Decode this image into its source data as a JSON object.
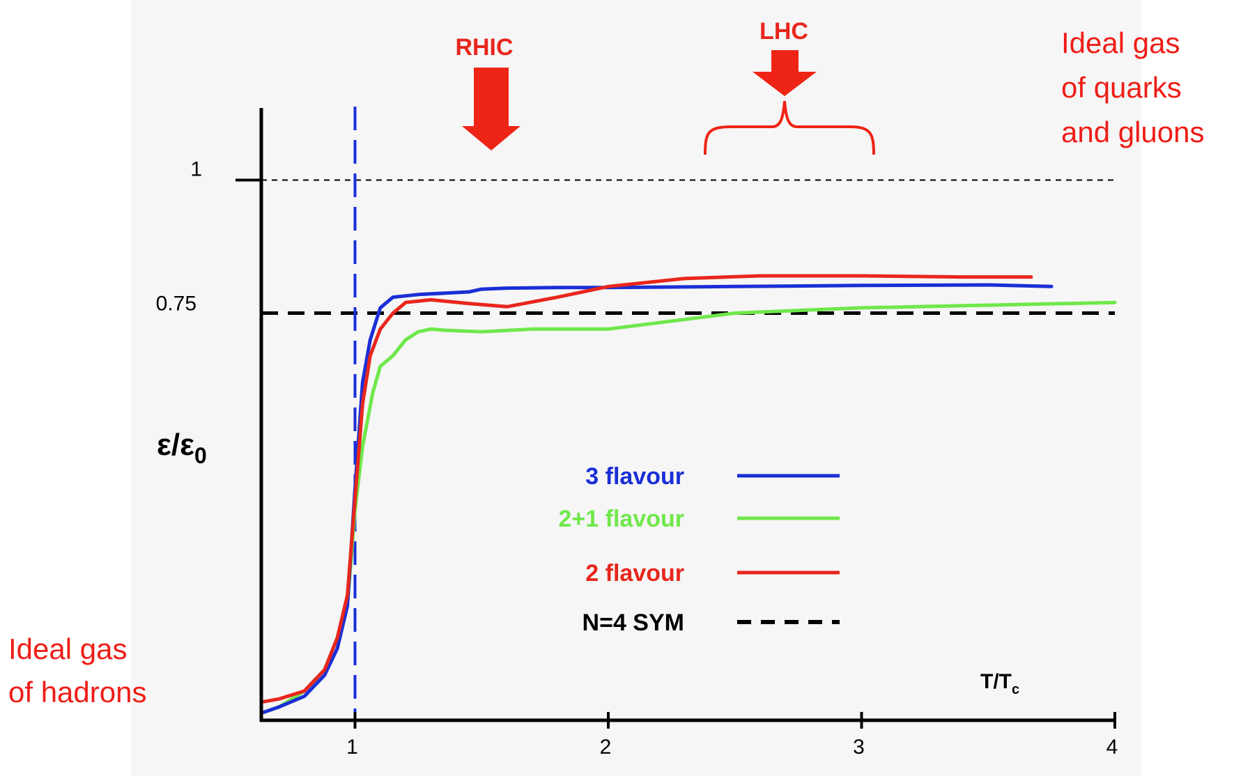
{
  "chart_data": {
    "type": "line",
    "xlabel": "T/T",
    "xlabel_sub": "c",
    "ylabel": "ε/ε",
    "ylabel_sub": "0",
    "xlim": [
      0.63,
      4.0
    ],
    "ylim": [
      -0.015,
      1.125
    ],
    "x_ticks": [
      {
        "value": 1,
        "label": "1"
      },
      {
        "value": 2,
        "label": "2"
      },
      {
        "value": 3,
        "label": "3"
      },
      {
        "value": 4,
        "label": "4"
      }
    ],
    "y_ticks": [
      {
        "value": 1,
        "label": "1"
      },
      {
        "value": 0.75,
        "label": "0.75"
      }
    ],
    "reference_lines": [
      {
        "name": "N=4 SYM",
        "value": 0.75,
        "style": "dashed",
        "color": "#000000"
      },
      {
        "value": 1.0,
        "style": "dotted",
        "color": "#000000"
      }
    ],
    "vertical_line": {
      "value": 1.0,
      "style": "dashed",
      "color": "#1a2fd6"
    },
    "series": [
      {
        "name": "3 flavour",
        "color": "#1a2fd6",
        "x": [
          0.64,
          0.7,
          0.8,
          0.88,
          0.93,
          0.97,
          1.0,
          1.03,
          1.06,
          1.1,
          1.15,
          1.25,
          1.45,
          1.5,
          1.6,
          1.8,
          2.0,
          2.5,
          3.0,
          3.5,
          3.75
        ],
        "y": [
          0.0,
          0.01,
          0.03,
          0.07,
          0.12,
          0.2,
          0.42,
          0.62,
          0.7,
          0.76,
          0.78,
          0.785,
          0.79,
          0.795,
          0.797,
          0.798,
          0.798,
          0.8,
          0.802,
          0.803,
          0.8
        ]
      },
      {
        "name": "2+1 flavour",
        "color": "#6fe84a",
        "x": [
          0.64,
          0.7,
          0.8,
          0.88,
          0.93,
          0.97,
          1.0,
          1.03,
          1.07,
          1.1,
          1.15,
          1.2,
          1.25,
          1.3,
          1.35,
          1.5,
          1.7,
          2.0,
          2.5,
          3.0,
          3.5,
          4.0
        ],
        "y": [
          0.0,
          0.01,
          0.04,
          0.08,
          0.14,
          0.2,
          0.38,
          0.5,
          0.6,
          0.65,
          0.67,
          0.7,
          0.715,
          0.72,
          0.718,
          0.715,
          0.72,
          0.72,
          0.75,
          0.76,
          0.765,
          0.77
        ]
      },
      {
        "name": "2 flavour",
        "color": "#e8261c",
        "x": [
          0.64,
          0.7,
          0.8,
          0.88,
          0.93,
          0.97,
          1.0,
          1.03,
          1.06,
          1.1,
          1.15,
          1.2,
          1.3,
          1.45,
          1.6,
          1.8,
          2.0,
          2.3,
          2.6,
          3.0,
          3.4,
          3.67
        ],
        "y": [
          0.02,
          0.025,
          0.04,
          0.08,
          0.14,
          0.22,
          0.4,
          0.58,
          0.67,
          0.72,
          0.75,
          0.77,
          0.775,
          0.768,
          0.762,
          0.78,
          0.8,
          0.815,
          0.82,
          0.82,
          0.818,
          0.818
        ]
      }
    ],
    "legend_position": "center"
  },
  "annotations": {
    "rhic_label": "RHIC",
    "lhc_label": "LHC",
    "qgp_text": [
      "Ideal gas",
      "of quarks",
      "and gluons"
    ],
    "hadron_text": [
      "Ideal gas",
      "of hadrons"
    ]
  },
  "legend": [
    {
      "label": "3 flavour",
      "color": "#1a2fd6",
      "style": "solid"
    },
    {
      "label": "2+1 flavour",
      "color": "#6fe84a",
      "style": "solid"
    },
    {
      "label": "2 flavour",
      "color": "#e8261c",
      "style": "solid"
    },
    {
      "label": "N=4 SYM",
      "color": "#000000",
      "style": "dashed"
    }
  ]
}
